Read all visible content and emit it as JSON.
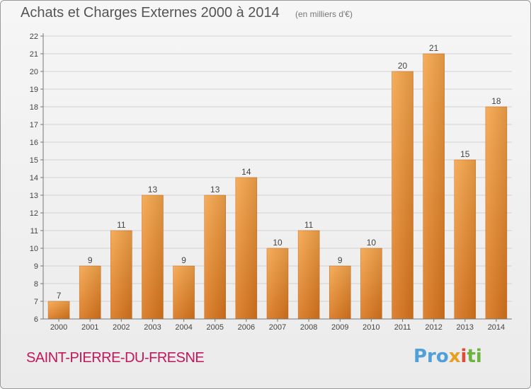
{
  "header": {
    "title": "Achats et Charges Externes 2000 à 2014",
    "subtitle": "(en milliers d'€)"
  },
  "footer": {
    "commune": "SAINT-PIERRE-DU-FRESNE",
    "logo": [
      "Pro",
      "x",
      "i",
      "ti"
    ]
  },
  "colors": {
    "bar_top": "#f5a54a",
    "bar_bottom": "#d9751c",
    "accent_text": "#c2185b"
  },
  "chart_data": {
    "type": "bar",
    "title": "Achats et Charges Externes 2000 à 2014",
    "subtitle": "(en milliers d'€)",
    "categories": [
      "2000",
      "2001",
      "2002",
      "2003",
      "2004",
      "2005",
      "2006",
      "2007",
      "2008",
      "2009",
      "2010",
      "2011",
      "2012",
      "2013",
      "2014"
    ],
    "values": [
      7,
      9,
      11,
      13,
      9,
      13,
      14,
      10,
      11,
      9,
      10,
      20,
      21,
      15,
      18
    ],
    "ylim": [
      6,
      22
    ],
    "yticks": [
      6,
      7,
      8,
      9,
      10,
      11,
      12,
      13,
      14,
      15,
      16,
      17,
      18,
      19,
      20,
      21,
      22
    ],
    "grid": true,
    "legend": "none"
  }
}
